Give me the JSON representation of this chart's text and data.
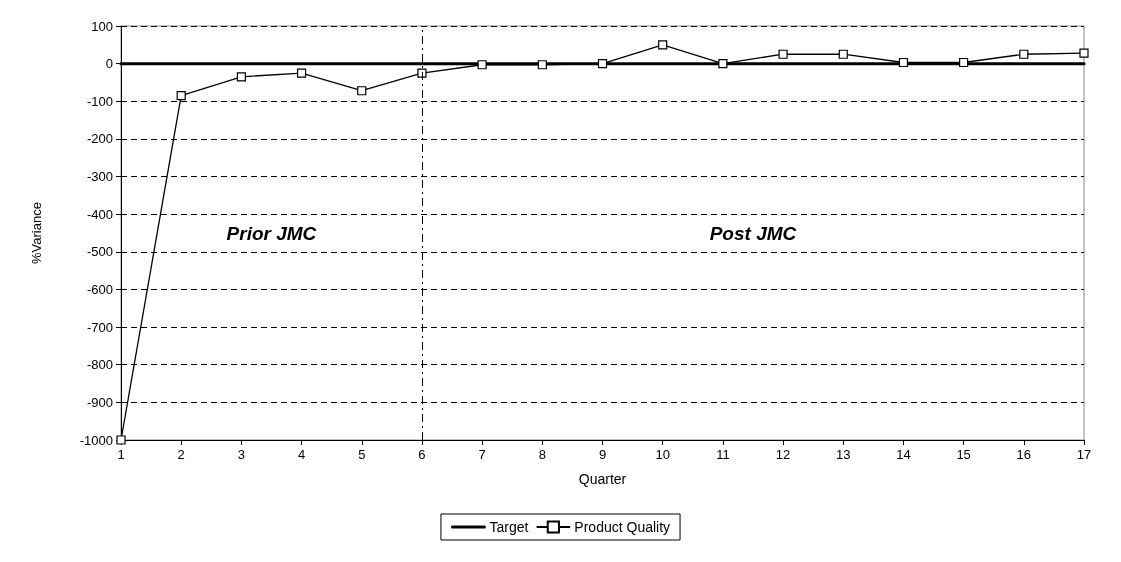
{
  "chart_data": {
    "type": "line",
    "xlabel": "Quarter",
    "ylabel": "%Variance",
    "x": [
      1,
      2,
      3,
      4,
      5,
      6,
      7,
      8,
      9,
      10,
      11,
      12,
      13,
      14,
      15,
      16,
      17
    ],
    "xlim": [
      1,
      17
    ],
    "xticks": [
      1,
      2,
      3,
      4,
      5,
      6,
      7,
      8,
      9,
      10,
      11,
      12,
      13,
      14,
      15,
      16,
      17
    ],
    "ylim": [
      -1000,
      100
    ],
    "yticks": [
      {
        "value": -1000,
        "label": "-1000"
      },
      -900,
      -800,
      -700,
      -600,
      -500,
      -400,
      -300,
      -200,
      -100,
      0,
      100
    ],
    "grid": "y",
    "legend": "bottom",
    "series": [
      {
        "name": "Target",
        "color": "#000000",
        "marker": "none",
        "values": [
          0,
          0,
          0,
          0,
          0,
          0,
          0,
          0,
          0,
          0,
          0,
          0,
          0,
          0,
          0,
          0,
          0
        ]
      },
      {
        "name": "Product Quality",
        "color": "#000000",
        "marker": "square",
        "values": [
          -1000,
          -85,
          -35,
          -25,
          -72,
          -25,
          -3,
          -3,
          0,
          50,
          0,
          25,
          25,
          3,
          3,
          25,
          28
        ]
      }
    ],
    "ref_lines": [
      {
        "axis": "x",
        "value": 6,
        "line_style": "dashed",
        "color": "#000000"
      }
    ],
    "annotations": [
      "Prior JMC",
      "Post JMC"
    ]
  }
}
